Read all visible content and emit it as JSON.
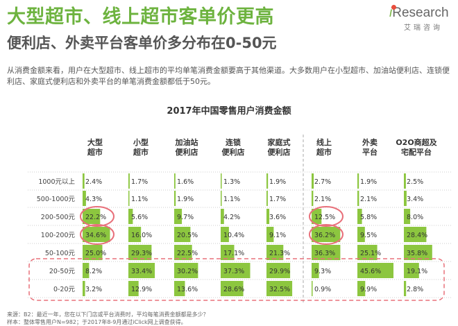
{
  "header": {
    "title": "大型超市、线上超市客单价更高",
    "subtitle": "便利店、外卖平台客单价多分布在0-50元"
  },
  "logo": {
    "i": "i",
    "rest": "Research",
    "sub": "艾瑞咨询"
  },
  "description": "从消费金额来看，用户在大型超市、线上超市的平均单笔消费金额要高于其他渠道。大多数用户在小型超市、加油站便利店、连锁便利店、家庭式便利店和外卖平台的单笔消费金额都低于50元。",
  "chart_data": {
    "type": "table",
    "title": "2017年中国零售用户消费金额",
    "columns": [
      [
        "大型",
        "超市"
      ],
      [
        "小型",
        "超市"
      ],
      [
        "加油站",
        "便利店"
      ],
      [
        "连锁",
        "便利店"
      ],
      [
        "家庭式",
        "便利店"
      ],
      [
        "线上",
        "超市"
      ],
      [
        "外卖",
        "平台"
      ],
      [
        "O2O商超及",
        "宅配平台"
      ]
    ],
    "rows": [
      "1000元以上",
      "500-1000元",
      "200-500元",
      "100-200元",
      "50-100元",
      "20-50元",
      "0-20元"
    ],
    "values": [
      [
        2.4,
        1.7,
        1.6,
        1.3,
        1.9,
        2.7,
        1.9,
        2.5
      ],
      [
        4.3,
        1.1,
        1.9,
        1.1,
        1.7,
        2.1,
        2.1,
        3.4
      ],
      [
        22.2,
        5.6,
        9.7,
        4.2,
        3.6,
        12.5,
        5.8,
        8.0
      ],
      [
        34.6,
        16.0,
        20.5,
        10.4,
        9.1,
        36.2,
        9.5,
        28.4
      ],
      [
        25.0,
        29.3,
        22.5,
        17.1,
        21.3,
        36.3,
        25.1,
        35.8
      ],
      [
        8.2,
        33.4,
        30.2,
        37.3,
        29.9,
        9.3,
        45.6,
        19.1
      ],
      [
        3.2,
        12.9,
        13.6,
        28.6,
        32.5,
        0.9,
        9.9,
        2.8
      ]
    ],
    "labels": [
      [
        "2.4%",
        "1.7%",
        "1.6%",
        "1.3%",
        "1.9%",
        "2.7%",
        "1.9%",
        "2.5%"
      ],
      [
        "4.3%",
        "1.1%",
        "1.9%",
        "1.1%",
        "1.7%",
        "2.1%",
        "2.1%",
        "3.4%"
      ],
      [
        "22.2%",
        "5.6%",
        "9.7%",
        "4.2%",
        "3.6%",
        "12.5%",
        "5.8%",
        "8.0%"
      ],
      [
        "34.6%",
        "16.0%",
        "20.5%",
        "10.4%",
        "9.1%",
        "36.2%",
        "9.5%",
        "28.4%"
      ],
      [
        "25.0%",
        "29.3%",
        "22.5%",
        "17.1%",
        "21.3%",
        "36.3%",
        "25.1%",
        "35.8%"
      ],
      [
        "8.2%",
        "33.4%",
        "30.2%",
        "37.3%",
        "29.9%",
        "9.3%",
        "45.6%",
        "19.1%"
      ],
      [
        "3.2%",
        "12.9%",
        "13.6%",
        "28.6%",
        "32.5%",
        "0.9%",
        "9.9%",
        "2.8%"
      ]
    ],
    "bar_max": 45.6,
    "circled": [
      [
        2,
        0
      ],
      [
        3,
        0
      ],
      [
        2,
        5
      ],
      [
        3,
        5
      ]
    ],
    "highlight_rows": [
      5,
      6
    ],
    "colors": {
      "bar": "#8cc63f",
      "circle": "#e8707a",
      "dash": "#e8707a",
      "grid": "#cccccc"
    }
  },
  "footnotes": [
    "来源：B2：最近一年，您在以下门店或平台消费时，平均每笔消费金额都是多少？",
    "样本：整体零售用户N=982；于2017年8-9月通过iClick网上调查获得。"
  ]
}
